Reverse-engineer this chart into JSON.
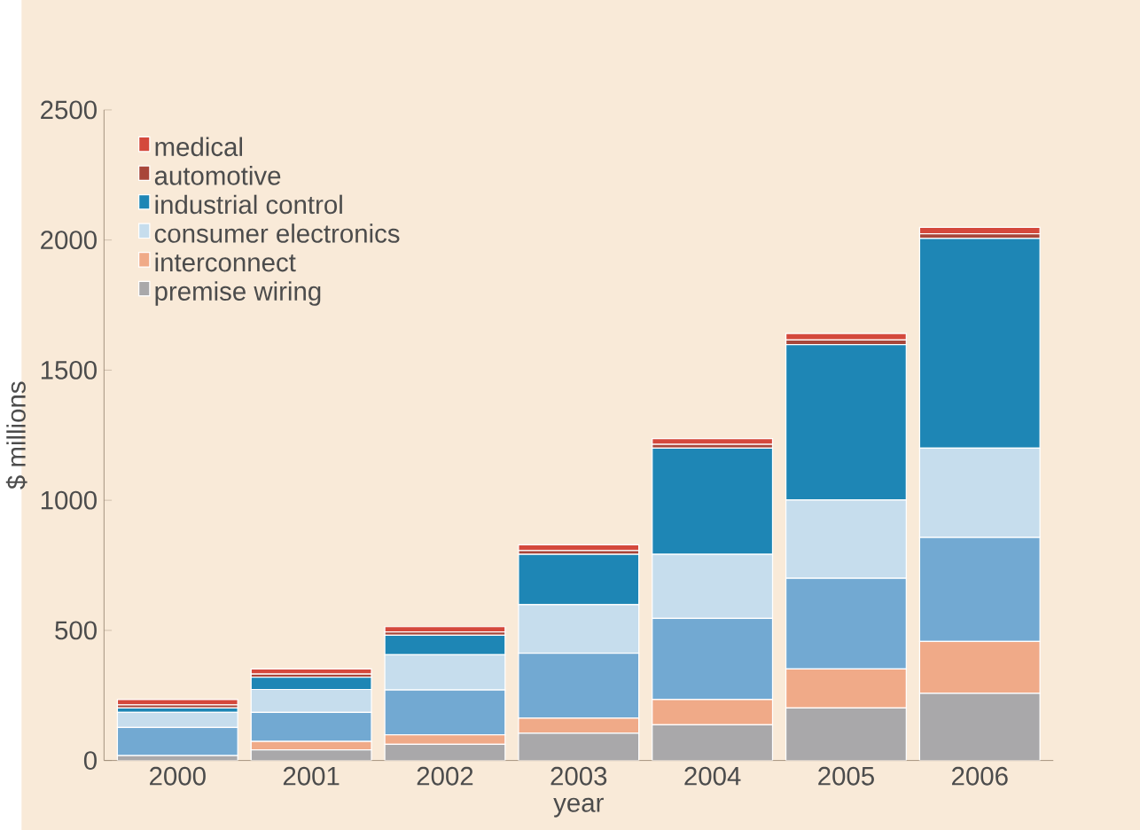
{
  "chart_data": {
    "type": "bar",
    "stacked": true,
    "xlabel": "year",
    "ylabel": "$ millions",
    "categories": [
      "2000",
      "2001",
      "2002",
      "2003",
      "2004",
      "2005",
      "2006"
    ],
    "ylim": [
      0,
      2500
    ],
    "yticks": [
      0,
      500,
      1000,
      1500,
      2000,
      2500
    ],
    "grid": false,
    "legend": "top left",
    "series": [
      {
        "name": "premise wiring",
        "color": "#a9a8aa",
        "values": [
          19,
          41,
          62,
          105,
          137,
          202,
          258
        ]
      },
      {
        "name": "interconnect",
        "color": "#f0aa88",
        "values": [
          null,
          32,
          37,
          58,
          97,
          150,
          199
        ]
      },
      {
        "color": "#72a9d2",
        "values": [
          108,
          112,
          172,
          249,
          312,
          348,
          400
        ]
      },
      {
        "name": "consumer electronics",
        "color": "#c6dded",
        "values": [
          58,
          88,
          135,
          187,
          246,
          301,
          343
        ]
      },
      {
        "name": "industrial control",
        "color": "#1e86b5",
        "values": [
          17,
          47,
          75,
          193,
          408,
          597,
          806
        ]
      },
      {
        "name": "automotive",
        "color": "#a8463a",
        "values": [
          12,
          12,
          13,
          15,
          15,
          18,
          18
        ]
      },
      {
        "name": "medical",
        "color": "#d4483c",
        "values": [
          20,
          20,
          20,
          22,
          22,
          25,
          25
        ]
      }
    ]
  }
}
